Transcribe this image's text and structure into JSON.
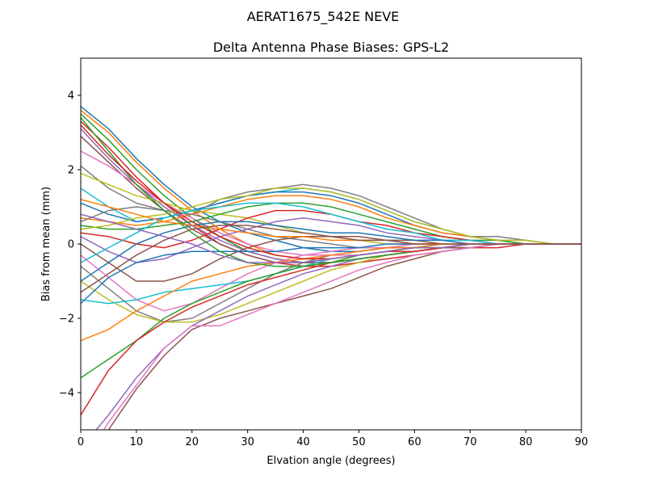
{
  "chart_data": {
    "type": "line",
    "suptitle": "AERAT1675_542E  NEVE",
    "title": "Delta Antenna Phase Biases: GPS-L2",
    "xlabel": "Elvation angle (degrees)",
    "ylabel": "Bias from mean (mm)",
    "xlim": [
      0,
      90
    ],
    "ylim": [
      -5,
      5
    ],
    "xticks": [
      0,
      10,
      20,
      30,
      40,
      50,
      60,
      70,
      80,
      90
    ],
    "yticks": [
      -4,
      -2,
      0,
      2,
      4
    ],
    "xtick_labels": [
      "0",
      "10",
      "20",
      "30",
      "40",
      "50",
      "60",
      "70",
      "80",
      "90"
    ],
    "ytick_labels": [
      "−4",
      "−2",
      "0",
      "2",
      "4"
    ],
    "grid": false,
    "legend": "none",
    "colors": [
      "#1f77b4",
      "#ff7f0e",
      "#2ca02c",
      "#d62728",
      "#9467bd",
      "#8c564b",
      "#e377c2",
      "#7f7f7f",
      "#bcbd22",
      "#17becf"
    ],
    "x": [
      0,
      5,
      10,
      15,
      20,
      25,
      30,
      35,
      40,
      45,
      50,
      55,
      60,
      65,
      70,
      75,
      80,
      85,
      90
    ],
    "series": [
      {
        "values": [
          3.7,
          3.1,
          2.3,
          1.6,
          1.0,
          0.6,
          0.3,
          0.1,
          -0.1,
          -0.2,
          -0.2,
          -0.1,
          -0.1,
          0.0,
          0.0,
          0.0,
          0.0,
          0.0,
          0.0
        ]
      },
      {
        "values": [
          3.6,
          3.0,
          2.2,
          1.5,
          0.9,
          0.4,
          0.0,
          -0.3,
          -0.4,
          -0.4,
          -0.3,
          -0.2,
          -0.1,
          -0.1,
          0.0,
          0.0,
          0.0,
          0.0,
          0.0
        ]
      },
      {
        "values": [
          3.5,
          2.8,
          2.0,
          1.3,
          0.7,
          0.2,
          -0.2,
          -0.4,
          -0.5,
          -0.5,
          -0.4,
          -0.3,
          -0.2,
          -0.1,
          -0.1,
          0.0,
          0.0,
          0.0,
          0.0
        ]
      },
      {
        "values": [
          3.3,
          2.6,
          1.8,
          1.1,
          0.5,
          0.0,
          -0.3,
          -0.5,
          -0.6,
          -0.6,
          -0.5,
          -0.4,
          -0.3,
          -0.2,
          -0.1,
          -0.1,
          0.0,
          0.0,
          0.0
        ]
      },
      {
        "values": [
          3.1,
          2.3,
          1.6,
          1.0,
          0.5,
          0.1,
          -0.2,
          -0.4,
          -0.5,
          -0.5,
          -0.4,
          -0.3,
          -0.2,
          -0.1,
          -0.1,
          0.0,
          0.0,
          0.0,
          0.0
        ]
      },
      {
        "values": [
          2.9,
          2.2,
          1.5,
          0.9,
          0.4,
          0.0,
          -0.3,
          -0.5,
          -0.5,
          -0.5,
          -0.4,
          -0.3,
          -0.2,
          -0.1,
          -0.1,
          0.0,
          0.0,
          0.0,
          0.0
        ]
      },
      {
        "values": [
          2.5,
          2.1,
          1.6,
          1.1,
          0.7,
          0.3,
          0.0,
          -0.2,
          -0.3,
          -0.3,
          -0.3,
          -0.2,
          -0.1,
          -0.1,
          0.0,
          0.0,
          0.0,
          0.0,
          0.0
        ]
      },
      {
        "values": [
          2.1,
          1.5,
          1.1,
          0.9,
          0.8,
          0.6,
          0.4,
          0.2,
          0.1,
          0.0,
          -0.1,
          -0.1,
          -0.1,
          0.0,
          0.0,
          0.0,
          0.0,
          0.0,
          0.0
        ]
      },
      {
        "values": [
          1.9,
          1.6,
          1.3,
          1.1,
          0.9,
          0.8,
          0.7,
          0.5,
          0.3,
          0.2,
          0.1,
          0.0,
          0.0,
          0.0,
          0.0,
          0.0,
          0.0,
          0.0,
          0.0
        ]
      },
      {
        "values": [
          1.5,
          1.0,
          0.6,
          0.7,
          0.9,
          1.1,
          1.3,
          1.4,
          1.5,
          1.4,
          1.2,
          0.9,
          0.6,
          0.4,
          0.2,
          0.1,
          0.1,
          0.0,
          0.0
        ]
      },
      {
        "values": [
          1.1,
          0.8,
          0.6,
          0.7,
          0.9,
          1.1,
          1.3,
          1.4,
          1.4,
          1.3,
          1.1,
          0.8,
          0.5,
          0.3,
          0.2,
          0.1,
          0.0,
          0.0,
          0.0
        ]
      },
      {
        "values": [
          0.7,
          0.6,
          0.5,
          0.6,
          0.8,
          1.0,
          1.2,
          1.3,
          1.3,
          1.2,
          1.0,
          0.7,
          0.5,
          0.3,
          0.2,
          0.1,
          0.0,
          0.0,
          0.0
        ]
      },
      {
        "values": [
          0.5,
          0.4,
          0.4,
          0.5,
          0.6,
          0.8,
          1.0,
          1.1,
          1.1,
          1.0,
          0.8,
          0.6,
          0.4,
          0.2,
          0.1,
          0.1,
          0.0,
          0.0,
          0.0
        ]
      },
      {
        "values": [
          0.3,
          0.2,
          0.0,
          -0.1,
          0.1,
          0.4,
          0.7,
          0.9,
          0.9,
          0.8,
          0.6,
          0.5,
          0.3,
          0.2,
          0.1,
          0.0,
          0.0,
          0.0,
          0.0
        ]
      },
      {
        "values": [
          0.2,
          -0.2,
          -0.5,
          -0.4,
          -0.1,
          0.2,
          0.4,
          0.6,
          0.7,
          0.6,
          0.5,
          0.3,
          0.2,
          0.1,
          0.1,
          0.0,
          0.0,
          0.0,
          0.0
        ]
      },
      {
        "values": [
          0.0,
          -0.5,
          -1.0,
          -1.0,
          -0.8,
          -0.4,
          -0.1,
          0.1,
          0.2,
          0.2,
          0.2,
          0.1,
          0.1,
          0.0,
          0.0,
          0.0,
          0.0,
          0.0,
          0.0
        ]
      },
      {
        "values": [
          -0.3,
          -0.9,
          -1.5,
          -1.8,
          -1.6,
          -1.2,
          -0.8,
          -0.5,
          -0.3,
          -0.2,
          -0.1,
          -0.1,
          0.0,
          0.0,
          0.0,
          0.0,
          0.0,
          0.0,
          0.0
        ]
      },
      {
        "values": [
          -0.6,
          -1.2,
          -1.8,
          -2.1,
          -2.0,
          -1.6,
          -1.2,
          -0.8,
          -0.5,
          -0.3,
          -0.2,
          -0.1,
          -0.1,
          0.0,
          0.0,
          0.0,
          0.0,
          0.0,
          0.0
        ]
      },
      {
        "values": [
          -1.0,
          -1.5,
          -1.9,
          -2.1,
          -2.1,
          -1.9,
          -1.6,
          -1.3,
          -1.0,
          -0.7,
          -0.5,
          -0.3,
          -0.2,
          -0.1,
          0.0,
          0.0,
          0.0,
          0.0,
          0.0
        ]
      },
      {
        "values": [
          -1.5,
          -1.6,
          -1.5,
          -1.3,
          -1.2,
          -1.1,
          -1.0,
          -0.8,
          -0.6,
          -0.4,
          -0.3,
          -0.2,
          -0.1,
          -0.1,
          0.0,
          0.0,
          0.0,
          0.0,
          0.0
        ]
      },
      {
        "values": [
          -1.6,
          -0.9,
          -0.5,
          -0.3,
          -0.2,
          -0.2,
          -0.2,
          -0.2,
          -0.1,
          -0.1,
          -0.1,
          0.0,
          0.0,
          0.0,
          0.0,
          0.0,
          0.0,
          0.0,
          0.0
        ]
      },
      {
        "values": [
          -2.6,
          -2.3,
          -1.8,
          -1.4,
          -1.0,
          -0.8,
          -0.6,
          -0.5,
          -0.4,
          -0.3,
          -0.2,
          -0.1,
          -0.1,
          0.0,
          0.0,
          0.0,
          0.0,
          0.0,
          0.0
        ]
      },
      {
        "values": [
          -3.6,
          -3.1,
          -2.6,
          -2.0,
          -1.6,
          -1.3,
          -1.0,
          -0.8,
          -0.6,
          -0.5,
          -0.3,
          -0.2,
          -0.1,
          -0.1,
          0.0,
          0.0,
          0.0,
          0.0,
          0.0
        ]
      },
      {
        "values": [
          -4.6,
          -3.4,
          -2.6,
          -2.1,
          -1.7,
          -1.4,
          -1.1,
          -0.9,
          -0.7,
          -0.5,
          -0.4,
          -0.3,
          -0.2,
          -0.1,
          0.0,
          0.0,
          0.0,
          0.0,
          0.0
        ]
      },
      {
        "values": [
          -5.5,
          -4.6,
          -3.6,
          -2.8,
          -2.2,
          -1.8,
          -1.4,
          -1.1,
          -0.8,
          -0.6,
          -0.4,
          -0.3,
          -0.2,
          -0.1,
          0.0,
          0.0,
          0.0,
          0.0,
          0.0
        ]
      },
      {
        "values": [
          -5.8,
          -5.0,
          -3.9,
          -3.0,
          -2.3,
          -2.0,
          -1.8,
          -1.6,
          -1.4,
          -1.2,
          -0.9,
          -0.6,
          -0.4,
          -0.2,
          -0.1,
          0.0,
          0.0,
          0.0,
          0.0
        ]
      },
      {
        "values": [
          -6.0,
          -4.8,
          -3.8,
          -2.8,
          -2.2,
          -2.2,
          -1.9,
          -1.6,
          -1.3,
          -1.0,
          -0.7,
          -0.5,
          -0.3,
          -0.2,
          -0.1,
          0.0,
          0.0,
          0.0,
          0.0
        ]
      },
      {
        "values": [
          0.6,
          0.9,
          1.0,
          0.9,
          0.8,
          1.2,
          1.4,
          1.5,
          1.6,
          1.5,
          1.3,
          1.0,
          0.7,
          0.4,
          0.2,
          0.2,
          0.1,
          0.0,
          0.0
        ]
      },
      {
        "values": [
          0.4,
          0.5,
          0.7,
          0.8,
          1.0,
          1.2,
          1.3,
          1.5,
          1.5,
          1.4,
          1.2,
          0.9,
          0.6,
          0.4,
          0.2,
          0.1,
          0.1,
          0.0,
          0.0
        ]
      },
      {
        "values": [
          -0.5,
          -0.1,
          0.3,
          0.7,
          0.9,
          1.0,
          1.1,
          1.1,
          1.0,
          0.8,
          0.6,
          0.4,
          0.3,
          0.1,
          0.1,
          0.0,
          0.0,
          0.0,
          0.0
        ]
      },
      {
        "values": [
          -1.0,
          -0.5,
          0.0,
          0.3,
          0.5,
          0.6,
          0.6,
          0.5,
          0.4,
          0.3,
          0.3,
          0.2,
          0.1,
          0.1,
          0.0,
          0.0,
          0.0,
          0.0,
          0.0
        ]
      },
      {
        "values": [
          1.2,
          1.0,
          0.8,
          0.6,
          0.5,
          0.4,
          0.3,
          0.2,
          0.2,
          0.1,
          0.1,
          0.1,
          0.0,
          0.0,
          0.0,
          0.0,
          0.0,
          0.0,
          0.0
        ]
      },
      {
        "values": [
          3.4,
          2.5,
          1.6,
          0.9,
          0.3,
          -0.2,
          -0.5,
          -0.6,
          -0.6,
          -0.5,
          -0.4,
          -0.3,
          -0.2,
          -0.1,
          0.0,
          0.0,
          0.0,
          0.0,
          0.0
        ]
      },
      {
        "values": [
          3.2,
          2.4,
          1.7,
          1.1,
          0.6,
          0.2,
          -0.1,
          -0.3,
          -0.4,
          -0.4,
          -0.3,
          -0.2,
          -0.2,
          -0.1,
          0.0,
          0.0,
          0.0,
          0.0,
          0.0
        ]
      },
      {
        "values": [
          0.8,
          0.6,
          0.4,
          0.2,
          0.0,
          -0.3,
          -0.5,
          -0.5,
          -0.5,
          -0.4,
          -0.3,
          -0.2,
          -0.1,
          -0.1,
          0.0,
          0.0,
          0.0,
          0.0,
          0.0
        ]
      },
      {
        "values": [
          -1.3,
          -0.8,
          -0.3,
          0.1,
          0.4,
          0.5,
          0.5,
          0.4,
          0.3,
          0.2,
          0.1,
          0.1,
          0.0,
          0.0,
          0.0,
          0.0,
          0.0,
          0.0,
          0.0
        ]
      }
    ]
  }
}
